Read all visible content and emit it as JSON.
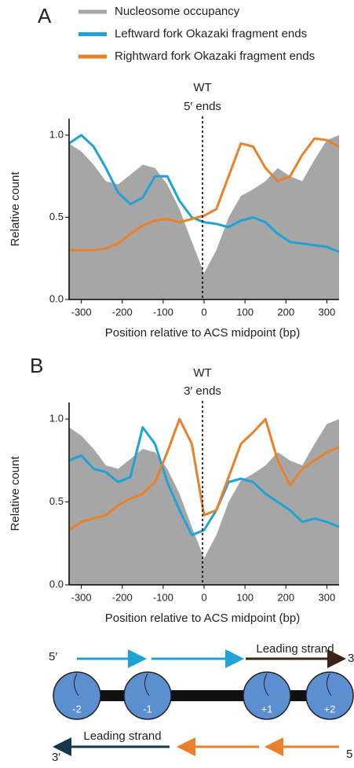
{
  "legend_title": null,
  "chart_data": [
    {
      "type": "line",
      "panel": "A",
      "annotations": [
        "WT",
        "5′ ends"
      ],
      "xlabel": "Position relative to ACS midpoint (bp)",
      "ylabel": "Relative count",
      "x": [
        -330,
        -300,
        -270,
        -240,
        -210,
        -180,
        -150,
        -120,
        -90,
        -60,
        -30,
        0,
        30,
        60,
        90,
        120,
        150,
        180,
        210,
        240,
        270,
        300,
        330
      ],
      "series": [
        {
          "name": "Nucleosome occupancy",
          "color": "#a6a6a6",
          "style": "area",
          "values": [
            0.95,
            0.9,
            0.82,
            0.72,
            0.7,
            0.76,
            0.82,
            0.8,
            0.7,
            0.55,
            0.35,
            0.16,
            0.3,
            0.5,
            0.63,
            0.67,
            0.72,
            0.8,
            0.75,
            0.72,
            0.85,
            0.97,
            1.0
          ]
        },
        {
          "name": "Leftward fork Okazaki fragment ends",
          "color": "#1fa3d6",
          "style": "line",
          "values": [
            0.95,
            1.0,
            0.93,
            0.8,
            0.65,
            0.58,
            0.62,
            0.75,
            0.75,
            0.6,
            0.5,
            0.47,
            0.46,
            0.44,
            0.48,
            0.5,
            0.47,
            0.4,
            0.35,
            0.34,
            0.33,
            0.32,
            0.29
          ]
        },
        {
          "name": "Rightward fork Okazaki fragment ends",
          "color": "#e8812a",
          "style": "line",
          "values": [
            0.3,
            0.3,
            0.3,
            0.31,
            0.34,
            0.4,
            0.45,
            0.48,
            0.49,
            0.47,
            0.49,
            0.51,
            0.55,
            0.75,
            0.95,
            0.93,
            0.8,
            0.72,
            0.75,
            0.88,
            0.98,
            0.97,
            0.93
          ]
        }
      ],
      "xlim": [
        -330,
        330
      ],
      "xticks": [
        -300,
        -200,
        -100,
        0,
        100,
        200,
        300
      ],
      "ylim": [
        0,
        1.1
      ],
      "yticks": [
        {
          "value": 0,
          "label": "0.0"
        },
        0.5,
        {
          "value": 1,
          "label": "1.0"
        }
      ]
    },
    {
      "type": "line",
      "panel": "B",
      "annotations": [
        "WT",
        "3′ ends"
      ],
      "xlabel": "Position relative to ACS midpoint (bp)",
      "ylabel": "Relative count",
      "x": [
        -330,
        -300,
        -270,
        -240,
        -210,
        -180,
        -150,
        -120,
        -90,
        -60,
        -30,
        0,
        30,
        60,
        90,
        120,
        150,
        180,
        210,
        240,
        270,
        300,
        330
      ],
      "series": [
        {
          "color": "#a6a6a6",
          "style": "area",
          "values": [
            0.95,
            0.9,
            0.82,
            0.72,
            0.7,
            0.76,
            0.82,
            0.8,
            0.7,
            0.55,
            0.35,
            0.16,
            0.3,
            0.5,
            0.63,
            0.67,
            0.72,
            0.8,
            0.75,
            0.72,
            0.85,
            0.97,
            1.0
          ]
        },
        {
          "color": "#1fa3d6",
          "style": "line",
          "values": [
            0.75,
            0.78,
            0.7,
            0.68,
            0.62,
            0.65,
            0.95,
            0.85,
            0.62,
            0.45,
            0.3,
            0.33,
            0.45,
            0.62,
            0.64,
            0.62,
            0.55,
            0.5,
            0.45,
            0.38,
            0.4,
            0.38,
            0.35
          ]
        },
        {
          "color": "#e8812a",
          "style": "line",
          "values": [
            0.33,
            0.38,
            0.4,
            0.42,
            0.48,
            0.52,
            0.55,
            0.62,
            0.8,
            1.0,
            0.85,
            0.42,
            0.45,
            0.65,
            0.85,
            0.92,
            1.0,
            0.75,
            0.6,
            0.7,
            0.75,
            0.8,
            0.83
          ]
        }
      ],
      "xlim": [
        -330,
        330
      ],
      "xticks": [
        -300,
        -200,
        -100,
        0,
        100,
        200,
        300
      ],
      "ylim": [
        0,
        1.1
      ],
      "yticks": [
        {
          "value": 0,
          "label": "0.0"
        },
        0.5,
        {
          "value": 1,
          "label": "1.0"
        }
      ]
    }
  ],
  "diagram": {
    "top_strand": {
      "start": "5′",
      "label": "Leading strand",
      "end": "3"
    },
    "nucleosomes": [
      "-2",
      "-1",
      "+1",
      "+2"
    ],
    "bottom_strand": {
      "start": "3′",
      "label": "Leading strand",
      "end": "5"
    }
  }
}
